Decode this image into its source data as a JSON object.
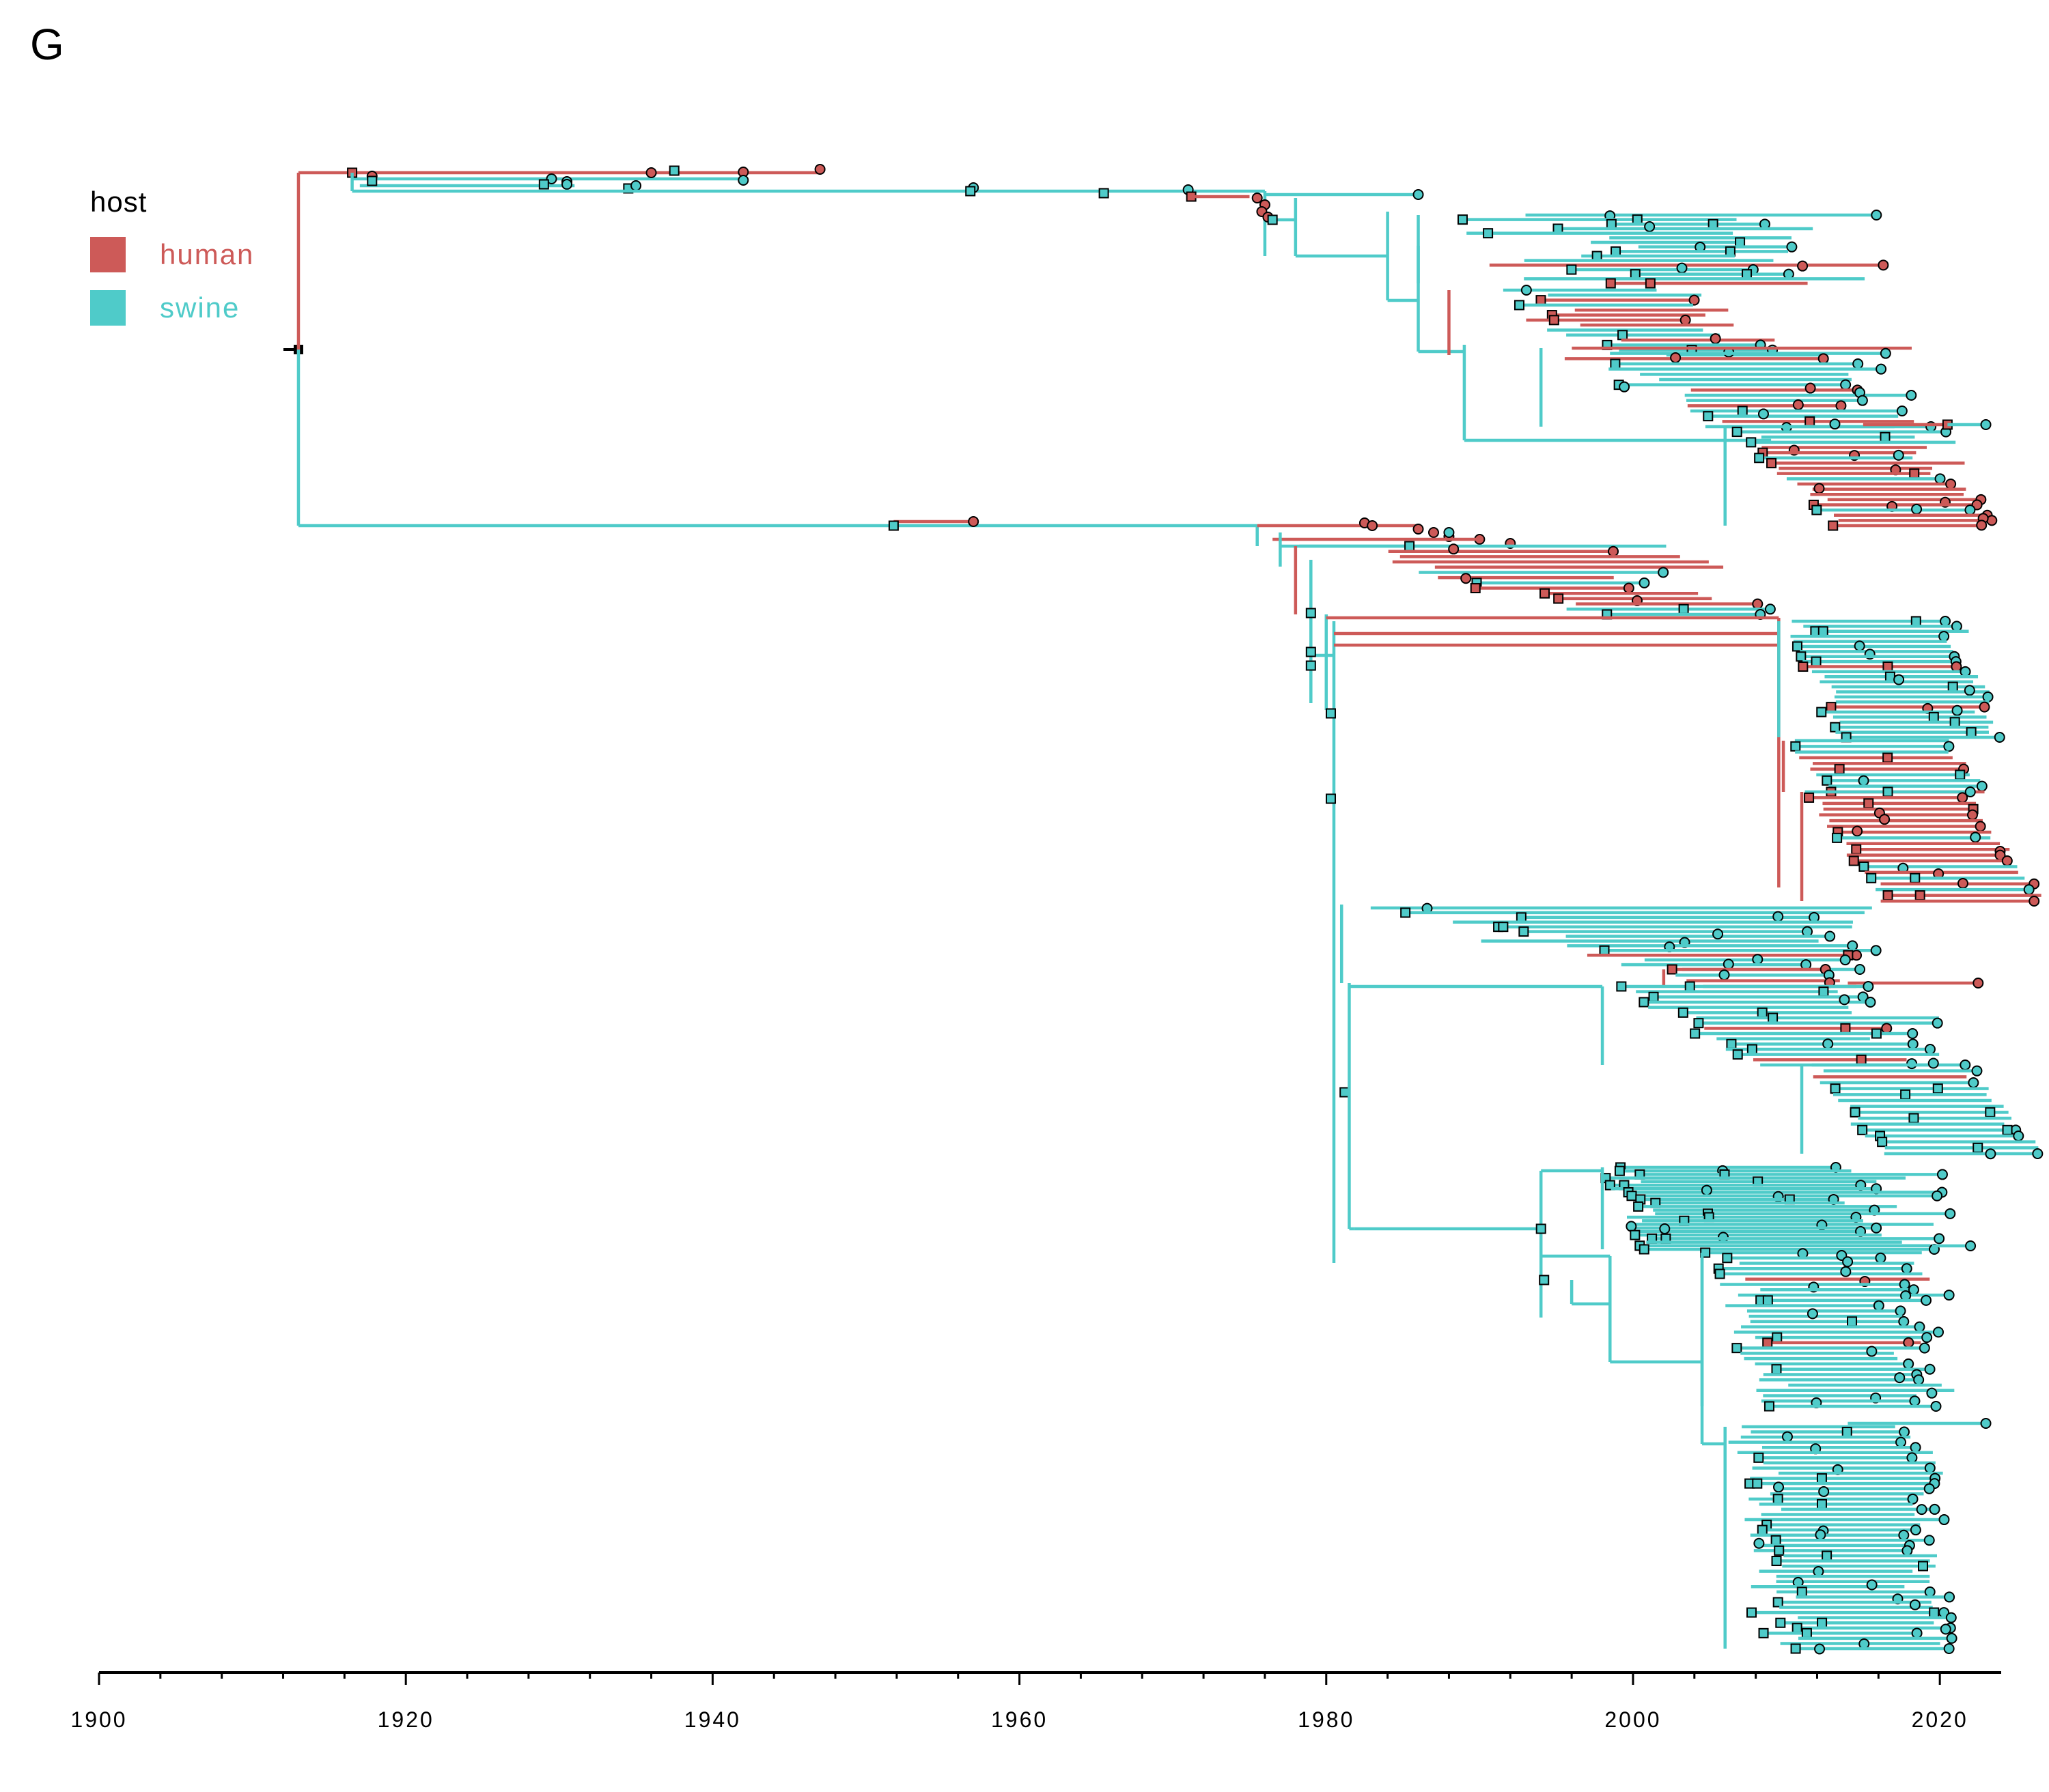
{
  "panel_label": "G",
  "legend": {
    "title": "host",
    "items": [
      {
        "label": "human",
        "color": "#CD5A58"
      },
      {
        "label": "swine",
        "color": "#4FCBC9"
      }
    ]
  },
  "colors": {
    "human": "#CD5A58",
    "swine": "#4FCBC9",
    "outline": "#000000"
  },
  "chart_data": {
    "type": "phylogenetic-tree",
    "xlabel": "",
    "xlim": [
      1900,
      2024
    ],
    "x_ticks": [
      1900,
      1920,
      1940,
      1960,
      1980,
      2000,
      2020
    ],
    "root": {
      "x": 1913,
      "host": "human"
    },
    "clades": [
      {
        "host": "human",
        "x_start": 1916.5,
        "x_end": 1947.0
      },
      {
        "host": "swine",
        "x_start": 1957.0,
        "x_end": 2022.5
      },
      {
        "host": "human",
        "x_start": 1975.0,
        "x_end": 2012.0
      },
      {
        "host": "swine",
        "x_start": 1976.0,
        "x_end": 2023.0
      },
      {
        "host": "human",
        "x_start": 1980.0,
        "x_end": 2019.0
      },
      {
        "host": "swine",
        "x_start": 1981.0,
        "x_end": 2022.5
      },
      {
        "host": "swine",
        "x_start": 1994.0,
        "x_end": 2022.5
      }
    ]
  }
}
